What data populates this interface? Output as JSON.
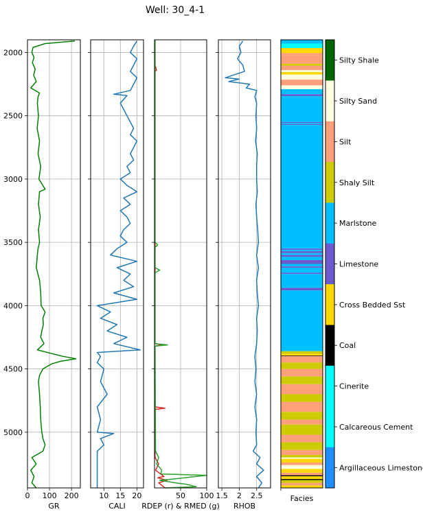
{
  "chart_data": {
    "type": "well-log",
    "title": "Well: 30_4-1",
    "depth_range": [
      1900,
      5440
    ],
    "depth_ticks": [
      2000,
      2500,
      3000,
      3500,
      4000,
      4500,
      5000
    ],
    "grid": true,
    "tracks": [
      {
        "name": "GR",
        "xlabel": "GR",
        "xlim": [
          0,
          240
        ],
        "xticks": [
          0,
          100,
          200
        ],
        "series": [
          {
            "color": "#008000",
            "depth": [
              1910,
              1930,
              1960,
              2000,
              2040,
              2080,
              2130,
              2180,
              2230,
              2280,
              2320,
              2350,
              2400,
              2500,
              2600,
              2700,
              2800,
              2900,
              3000,
              3080,
              3100,
              3200,
              3300,
              3400,
              3500,
              3550,
              3600,
              3700,
              3800,
              3900,
              4000,
              4050,
              4100,
              4150,
              4200,
              4250,
              4300,
              4350,
              4400,
              4420,
              4440,
              4460,
              4480,
              4500,
              4550,
              4600,
              4700,
              4800,
              4900,
              5000,
              5050,
              5100,
              5150,
              5200,
              5250,
              5300,
              5350,
              5400,
              5440
            ],
            "values": [
              215,
              80,
              25,
              20,
              30,
              22,
              35,
              28,
              40,
              15,
              55,
              48,
              45,
              50,
              44,
              55,
              48,
              60,
              52,
              80,
              55,
              50,
              58,
              50,
              55,
              48,
              45,
              40,
              55,
              60,
              62,
              80,
              70,
              72,
              65,
              60,
              75,
              45,
              160,
              220,
              150,
              110,
              90,
              70,
              55,
              50,
              55,
              58,
              60,
              65,
              70,
              80,
              70,
              20,
              40,
              15,
              30,
              20,
              40
            ]
          }
        ]
      },
      {
        "name": "CALI",
        "xlabel": "CALI",
        "xlim": [
          6,
          22
        ],
        "xticks": [
          10,
          15,
          20
        ],
        "series": [
          {
            "color": "#1f77b4",
            "depth": [
              1910,
              1950,
              2000,
              2050,
              2100,
              2150,
              2200,
              2250,
              2300,
              2330,
              2340,
              2400,
              2450,
              2500,
              2550,
              2600,
              2650,
              2700,
              2750,
              2800,
              2850,
              2900,
              2950,
              3000,
              3050,
              3100,
              3150,
              3200,
              3250,
              3300,
              3350,
              3400,
              3450,
              3500,
              3550,
              3600,
              3650,
              3700,
              3750,
              3800,
              3850,
              3900,
              3950,
              4000,
              4050,
              4100,
              4150,
              4200,
              4250,
              4300,
              4350,
              4370,
              4400,
              4450,
              4500,
              4600,
              4700,
              4800,
              4900,
              5000,
              5010,
              5050,
              5100,
              5150,
              5200,
              5300,
              5400,
              5440
            ],
            "values": [
              20,
              19,
              18,
              20,
              19,
              18,
              20,
              19,
              18,
              13,
              17,
              15,
              16,
              17,
              18,
              19,
              18,
              20,
              19,
              18,
              19,
              17,
              18,
              15,
              17,
              20,
              16,
              18,
              15,
              17,
              18,
              16,
              15,
              17,
              14,
              12,
              20,
              14,
              18,
              16,
              19,
              13,
              20,
              8,
              12,
              9,
              14,
              11,
              17,
              13,
              21,
              8,
              9,
              8,
              10,
              9,
              11,
              8,
              9,
              8,
              13,
              9,
              10,
              8,
              8,
              8,
              8,
              8
            ]
          }
        ]
      },
      {
        "name": "RES",
        "xlabel": "RDEP (r) & RMED (g)",
        "xlim": [
          0,
          100
        ],
        "xticks": [
          50,
          100
        ],
        "series": [
          {
            "color": "#d62728",
            "depth": [
              1900,
              2100,
              2140,
              2150,
              2300,
              3500,
              4300,
              4310,
              4320,
              4800,
              4810,
              4820,
              5200,
              5250,
              5300,
              5350,
              5360,
              5380,
              5400,
              5440
            ],
            "values": [
              1,
              1,
              4,
              1,
              1,
              1,
              1,
              15,
              1,
              1,
              20,
              1,
              1,
              8,
              2,
              18,
              6,
              24,
              8,
              20
            ]
          },
          {
            "color": "#2ca02c",
            "depth": [
              1900,
              3500,
              3520,
              3540,
              3600,
              3700,
              3720,
              3740,
              4300,
              4310,
              4320,
              5150,
              5200,
              5250,
              5300,
              5330,
              5340,
              5370,
              5380,
              5400,
              5410,
              5430,
              5440
            ],
            "values": [
              1,
              1,
              6,
              1,
              1,
              1,
              10,
              1,
              1,
              25,
              1,
              2,
              8,
              4,
              14,
              12,
              100,
              35,
              10,
              40,
              60,
              80,
              20
            ]
          }
        ]
      },
      {
        "name": "RHOB",
        "xlabel": "RHOB",
        "xlim": [
          1.4,
          2.9
        ],
        "xticks": [
          1.5,
          2.0,
          2.5
        ],
        "series": [
          {
            "color": "#1f77b4",
            "depth": [
              1910,
              1950,
              2000,
              2050,
              2100,
              2150,
              2200,
              2210,
              2230,
              2250,
              2280,
              2300,
              2350,
              2400,
              2500,
              2600,
              2700,
              2800,
              2900,
              3000,
              3100,
              3200,
              3300,
              3400,
              3500,
              3600,
              3700,
              3800,
              3900,
              4000,
              4100,
              4200,
              4300,
              4400,
              4500,
              4600,
              4700,
              4800,
              4900,
              5000,
              5100,
              5150,
              5200,
              5250,
              5300,
              5350,
              5400,
              5440
            ],
            "values": [
              2.1,
              2.0,
              2.05,
              1.95,
              2.1,
              2.15,
              1.6,
              2.0,
              1.7,
              2.3,
              2.2,
              2.5,
              2.45,
              2.5,
              2.48,
              2.5,
              2.47,
              2.52,
              2.5,
              2.5,
              2.52,
              2.48,
              2.5,
              2.53,
              2.55,
              2.5,
              2.55,
              2.5,
              2.52,
              2.55,
              2.5,
              2.52,
              2.5,
              2.45,
              2.48,
              2.45,
              2.5,
              2.45,
              2.5,
              2.48,
              2.5,
              2.4,
              2.6,
              2.5,
              2.7,
              2.5,
              2.65,
              2.55
            ]
          }
        ]
      }
    ],
    "facies_track": {
      "xlabel": "Facies",
      "intervals": [
        {
          "top": 1900,
          "base": 1930,
          "facies": "Marlstone"
        },
        {
          "top": 1930,
          "base": 1965,
          "facies": "Cinerite"
        },
        {
          "top": 1965,
          "base": 2005,
          "facies": "Cross Bedded Sst"
        },
        {
          "top": 2005,
          "base": 2020,
          "facies": "Silt"
        },
        {
          "top": 2020,
          "base": 2090,
          "facies": "Silt"
        },
        {
          "top": 2090,
          "base": 2105,
          "facies": "Shaly Silt"
        },
        {
          "top": 2105,
          "base": 2140,
          "facies": "Silt"
        },
        {
          "top": 2140,
          "base": 2155,
          "facies": "Silty Sand"
        },
        {
          "top": 2155,
          "base": 2175,
          "facies": "Cross Bedded Sst"
        },
        {
          "top": 2175,
          "base": 2215,
          "facies": "Silty Sand"
        },
        {
          "top": 2215,
          "base": 2260,
          "facies": "Silt"
        },
        {
          "top": 2260,
          "base": 2290,
          "facies": "Silty Sand"
        },
        {
          "top": 2290,
          "base": 2330,
          "facies": "Marlstone"
        },
        {
          "top": 2330,
          "base": 2345,
          "facies": "Limestone"
        },
        {
          "top": 2345,
          "base": 2550,
          "facies": "Marlstone"
        },
        {
          "top": 2550,
          "base": 2556,
          "facies": "Limestone"
        },
        {
          "top": 2556,
          "base": 2565,
          "facies": "Marlstone"
        },
        {
          "top": 2565,
          "base": 2572,
          "facies": "Limestone"
        },
        {
          "top": 2572,
          "base": 3550,
          "facies": "Marlstone"
        },
        {
          "top": 3550,
          "base": 3560,
          "facies": "Limestone"
        },
        {
          "top": 3560,
          "base": 3570,
          "facies": "Marlstone"
        },
        {
          "top": 3570,
          "base": 3585,
          "facies": "Limestone"
        },
        {
          "top": 3585,
          "base": 3600,
          "facies": "Marlstone"
        },
        {
          "top": 3600,
          "base": 3615,
          "facies": "Limestone"
        },
        {
          "top": 3615,
          "base": 3640,
          "facies": "Marlstone"
        },
        {
          "top": 3640,
          "base": 3670,
          "facies": "Limestone"
        },
        {
          "top": 3670,
          "base": 3690,
          "facies": "Marlstone"
        },
        {
          "top": 3690,
          "base": 3700,
          "facies": "Limestone"
        },
        {
          "top": 3700,
          "base": 3740,
          "facies": "Marlstone"
        },
        {
          "top": 3740,
          "base": 3750,
          "facies": "Limestone"
        },
        {
          "top": 3750,
          "base": 3860,
          "facies": "Marlstone"
        },
        {
          "top": 3860,
          "base": 3880,
          "facies": "Limestone"
        },
        {
          "top": 3880,
          "base": 4360,
          "facies": "Marlstone"
        },
        {
          "top": 4360,
          "base": 4380,
          "facies": "Shaly Silt"
        },
        {
          "top": 4380,
          "base": 4395,
          "facies": "Cross Bedded Sst"
        },
        {
          "top": 4395,
          "base": 4400,
          "facies": "Coal"
        },
        {
          "top": 4400,
          "base": 4450,
          "facies": "Silt"
        },
        {
          "top": 4450,
          "base": 4500,
          "facies": "Shaly Silt"
        },
        {
          "top": 4500,
          "base": 4560,
          "facies": "Silt"
        },
        {
          "top": 4560,
          "base": 4620,
          "facies": "Shaly Silt"
        },
        {
          "top": 4620,
          "base": 4700,
          "facies": "Silt"
        },
        {
          "top": 4700,
          "base": 4760,
          "facies": "Shaly Silt"
        },
        {
          "top": 4760,
          "base": 4840,
          "facies": "Silt"
        },
        {
          "top": 4840,
          "base": 4900,
          "facies": "Shaly Silt"
        },
        {
          "top": 4900,
          "base": 4940,
          "facies": "Silt"
        },
        {
          "top": 4940,
          "base": 5020,
          "facies": "Shaly Silt"
        },
        {
          "top": 5020,
          "base": 5080,
          "facies": "Silt"
        },
        {
          "top": 5080,
          "base": 5140,
          "facies": "Shaly Silt"
        },
        {
          "top": 5140,
          "base": 5180,
          "facies": "Silt"
        },
        {
          "top": 5180,
          "base": 5200,
          "facies": "Shaly Silt"
        },
        {
          "top": 5200,
          "base": 5210,
          "facies": "Silty Sand"
        },
        {
          "top": 5210,
          "base": 5240,
          "facies": "Cross Bedded Sst"
        },
        {
          "top": 5240,
          "base": 5260,
          "facies": "Silt"
        },
        {
          "top": 5260,
          "base": 5290,
          "facies": "Silty Sand"
        },
        {
          "top": 5290,
          "base": 5320,
          "facies": "Cross Bedded Sst"
        },
        {
          "top": 5320,
          "base": 5340,
          "facies": "Silt"
        },
        {
          "top": 5340,
          "base": 5348,
          "facies": "Coal"
        },
        {
          "top": 5348,
          "base": 5370,
          "facies": "Cross Bedded Sst"
        },
        {
          "top": 5370,
          "base": 5378,
          "facies": "Coal"
        },
        {
          "top": 5378,
          "base": 5400,
          "facies": "Shaly Silt"
        },
        {
          "top": 5400,
          "base": 5420,
          "facies": "Silt"
        },
        {
          "top": 5420,
          "base": 5440,
          "facies": "Cross Bedded Sst"
        }
      ]
    },
    "legend": {
      "placement": "right",
      "categories": [
        {
          "label": "Silty Shale",
          "color": "#006400"
        },
        {
          "label": "Silty Sand",
          "color": "#FFFFE0"
        },
        {
          "label": "Silt",
          "color": "#FFA07A"
        },
        {
          "label": "Shaly Silt",
          "color": "#CCCC00"
        },
        {
          "label": "Marlstone",
          "color": "#00BFFF"
        },
        {
          "label": "Limestone",
          "color": "#6A5ACD"
        },
        {
          "label": "Cross Bedded Sst",
          "color": "#FFD700"
        },
        {
          "label": "Coal",
          "color": "#000000"
        },
        {
          "label": "Cinerite",
          "color": "#00FFFF"
        },
        {
          "label": "Calcareous Cement",
          "color": "#00FFFF"
        },
        {
          "label": "Argillaceous Limestone",
          "color": "#1E90FF"
        }
      ]
    }
  }
}
